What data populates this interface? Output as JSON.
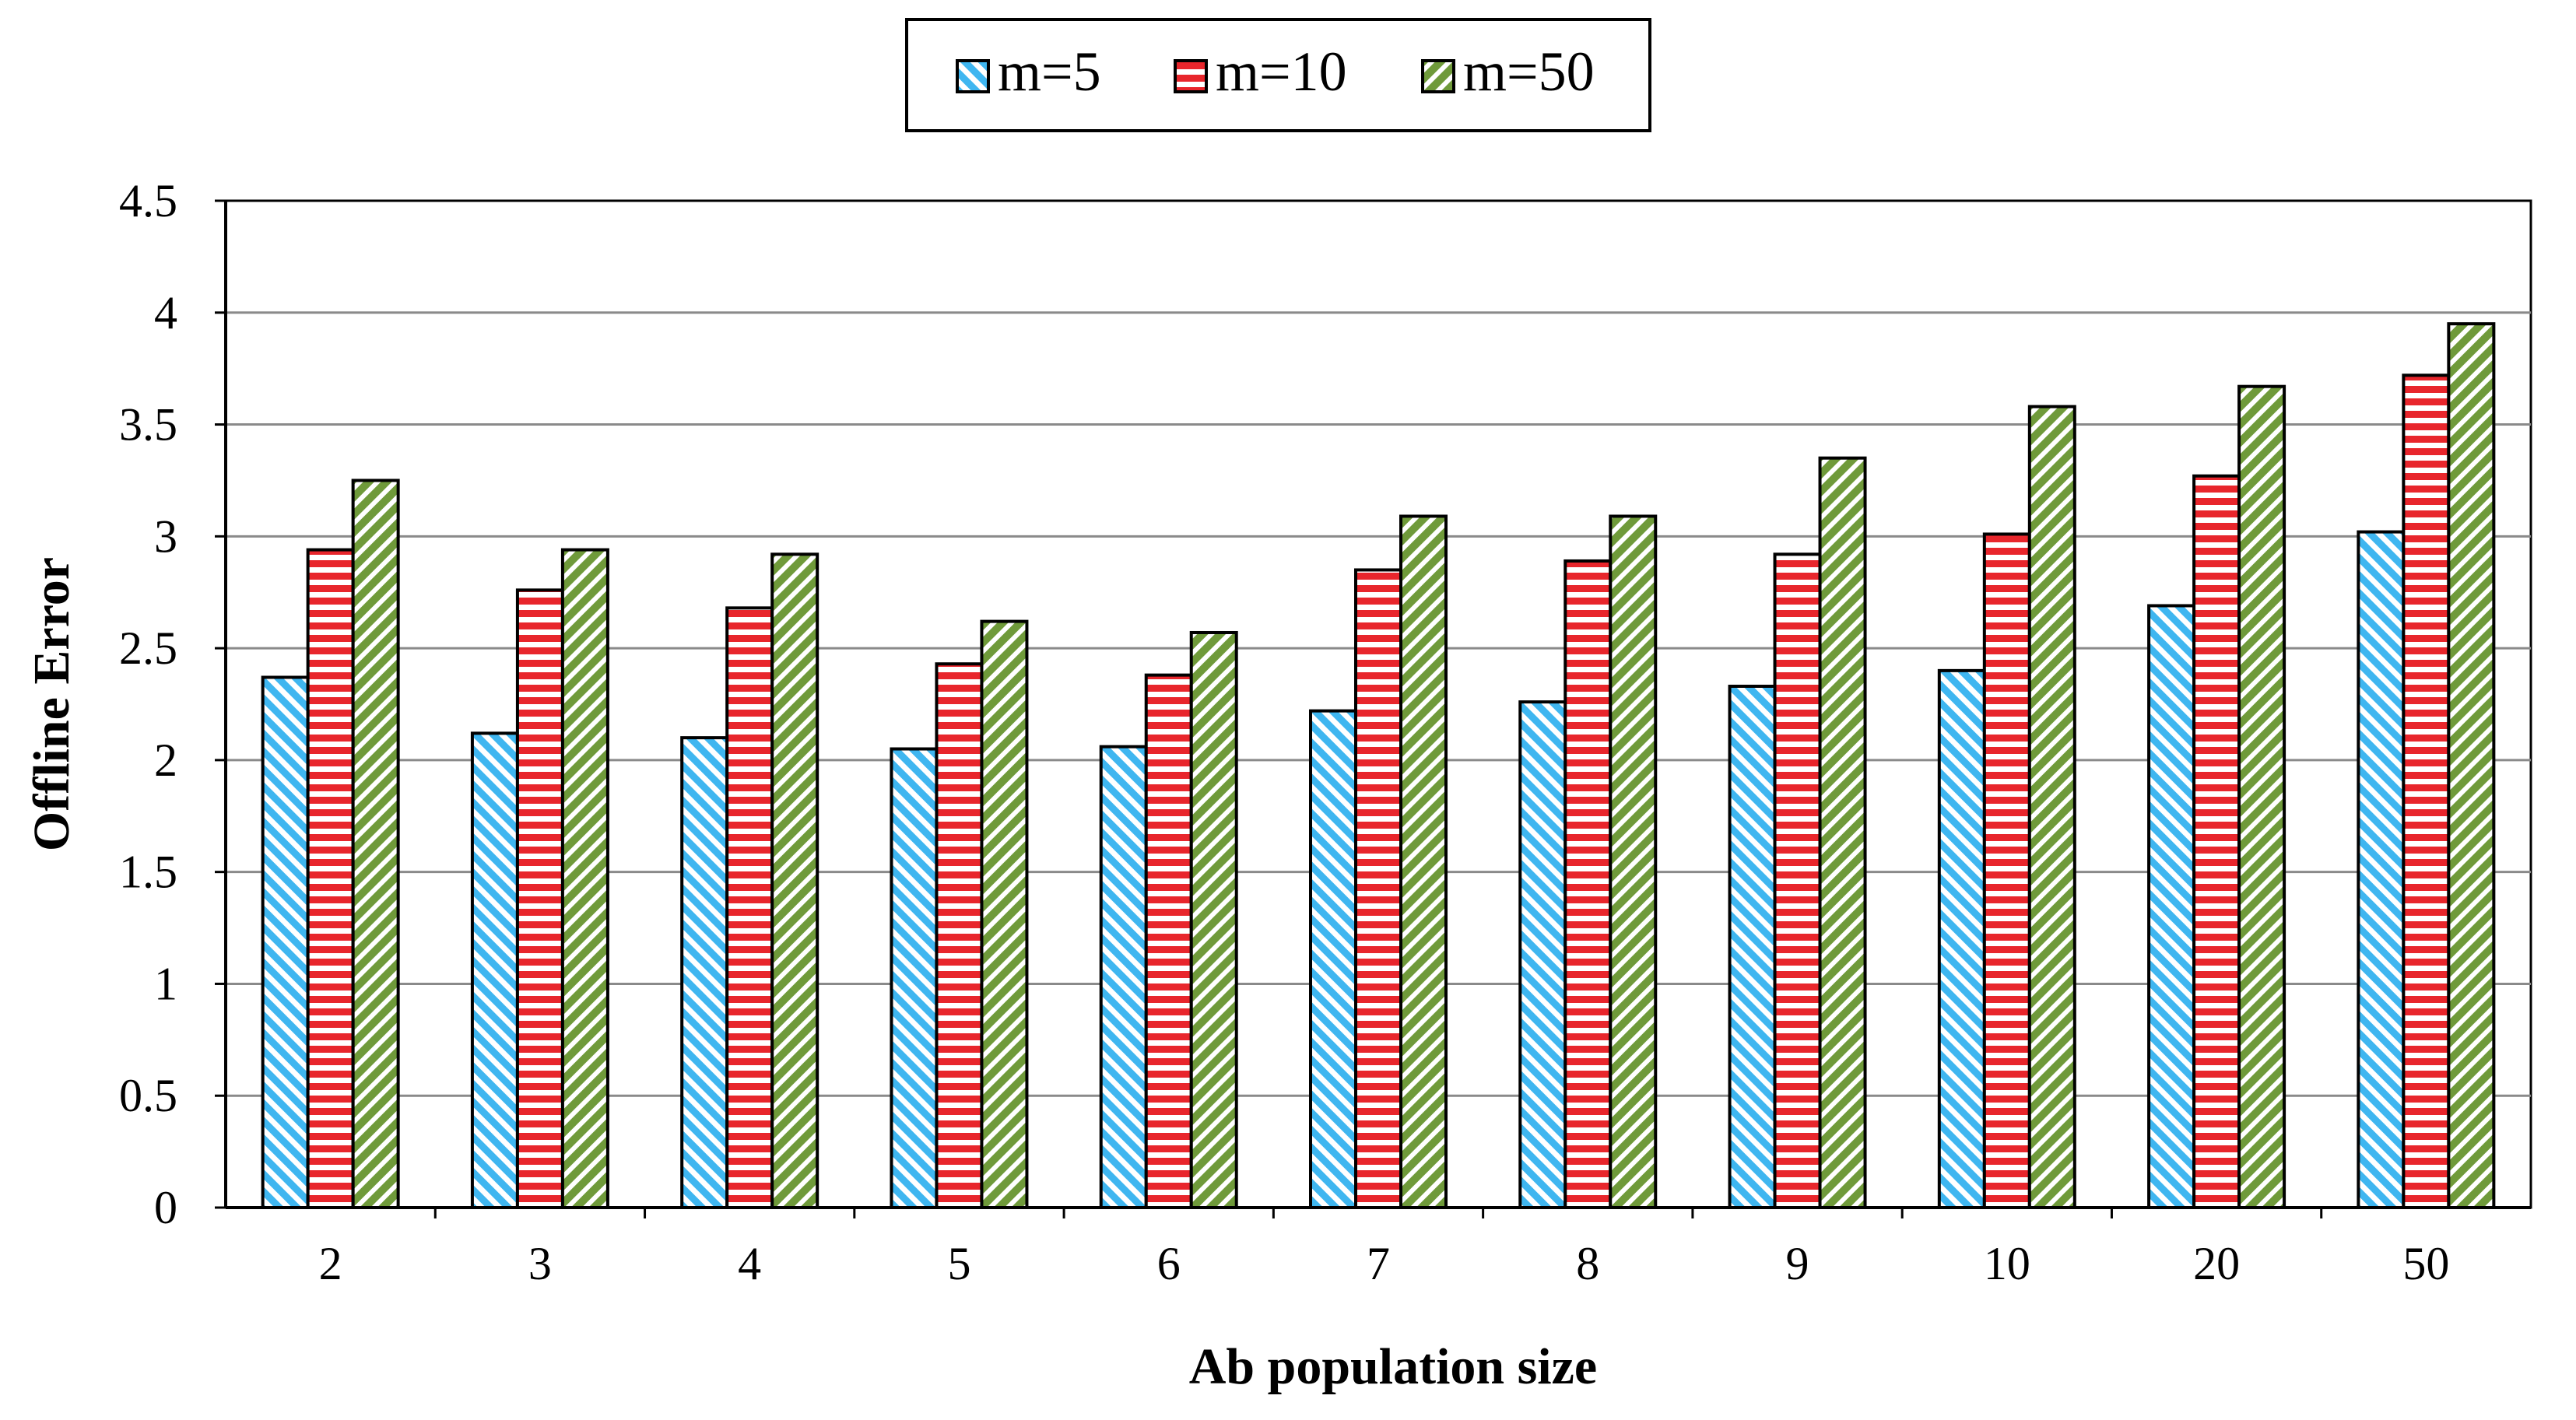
{
  "chart_data": {
    "type": "bar",
    "title": "",
    "xlabel": "Ab population size",
    "ylabel": "Offline Error",
    "categories": [
      "2",
      "3",
      "4",
      "5",
      "6",
      "7",
      "8",
      "9",
      "10",
      "20",
      "50"
    ],
    "series": [
      {
        "name": "m=5",
        "color": "#3fb6f0",
        "pattern": "diagonal-stripes",
        "values": [
          2.37,
          2.12,
          2.1,
          2.05,
          2.06,
          2.22,
          2.26,
          2.33,
          2.4,
          2.69,
          3.02
        ]
      },
      {
        "name": "m=10",
        "color": "#e8262c",
        "pattern": "horizontal-stripes",
        "values": [
          2.94,
          2.76,
          2.68,
          2.43,
          2.38,
          2.85,
          2.89,
          2.92,
          3.01,
          3.27,
          3.72
        ]
      },
      {
        "name": "m=50",
        "color": "#6f9a3a",
        "pattern": "zigzag-stripes",
        "values": [
          3.25,
          2.94,
          2.92,
          2.62,
          2.57,
          3.09,
          3.09,
          3.35,
          3.58,
          3.67,
          3.95
        ]
      }
    ],
    "ylim": [
      0,
      4.5
    ],
    "yticks": [
      "0",
      "0.5",
      "1",
      "1.5",
      "2",
      "2.5",
      "3",
      "3.5",
      "4",
      "4.5"
    ],
    "grid": true,
    "legend_position": "top-center"
  }
}
